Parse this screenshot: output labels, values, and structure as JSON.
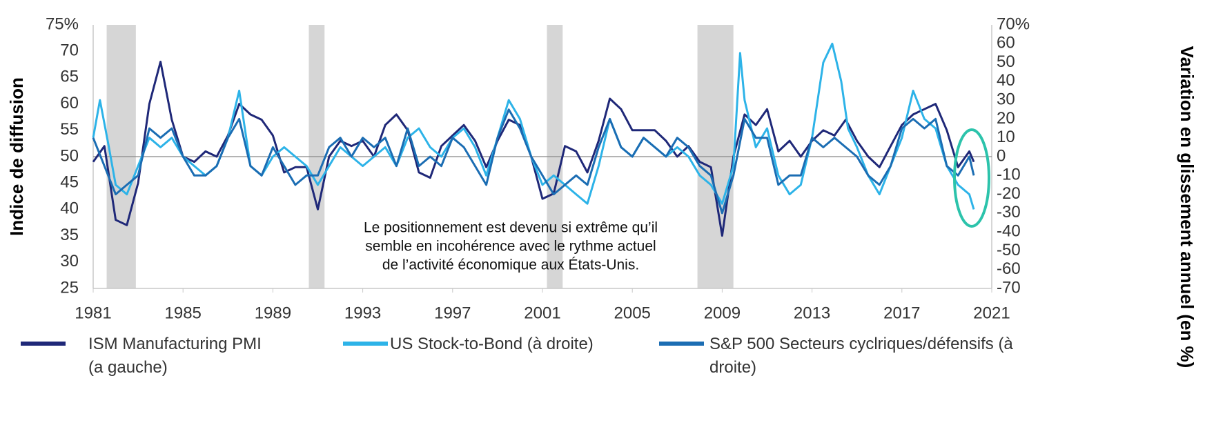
{
  "chart_data": {
    "type": "line",
    "ylabel": "Indice de diffusion",
    "y2label": "Variation en glissement annuel (en %)",
    "annotation": [
      "Le positionnement est devenu si extrême qu’il",
      "semble en incohérence avec le rythme actuel",
      "de l’activité économique aux États-Unis."
    ],
    "xlim": [
      1981,
      2021
    ],
    "xticks": [
      1981,
      1985,
      1989,
      1993,
      1997,
      2001,
      2005,
      2009,
      2013,
      2017,
      2021
    ],
    "ylim": [
      25,
      75
    ],
    "yticks": [
      25,
      30,
      35,
      40,
      45,
      50,
      55,
      60,
      65,
      70,
      {
        "value": 75,
        "label": "75%"
      }
    ],
    "y2lim": [
      -70,
      70
    ],
    "y2ticks": [
      -70,
      -60,
      -50,
      -40,
      -30,
      -20,
      -10,
      0,
      10,
      20,
      30,
      40,
      50,
      60,
      {
        "value": 70,
        "label": "70%"
      }
    ],
    "bands": [
      [
        1981.6,
        1982.9
      ],
      [
        1990.6,
        1991.3
      ],
      [
        2001.2,
        2001.9
      ],
      [
        2007.9,
        2009.5
      ]
    ],
    "series": [
      {
        "name": "ISM Manufacturing PMI (a gauche)",
        "color": "#1f2878",
        "axis": "y",
        "x": [
          1981.0,
          1981.5,
          1982.0,
          1982.5,
          1983.0,
          1983.5,
          1984.0,
          1984.5,
          1985.0,
          1985.5,
          1986.0,
          1986.5,
          1987.0,
          1987.5,
          1988.0,
          1988.5,
          1989.0,
          1989.5,
          1990.0,
          1990.5,
          1991.0,
          1991.5,
          1992.0,
          1992.5,
          1993.0,
          1993.5,
          1994.0,
          1994.5,
          1995.0,
          1995.5,
          1996.0,
          1996.5,
          1997.0,
          1997.5,
          1998.0,
          1998.5,
          1999.0,
          1999.5,
          2000.0,
          2000.5,
          2001.0,
          2001.5,
          2002.0,
          2002.5,
          2003.0,
          2003.5,
          2004.0,
          2004.5,
          2005.0,
          2005.5,
          2006.0,
          2006.5,
          2007.0,
          2007.5,
          2008.0,
          2008.5,
          2009.0,
          2009.5,
          2010.0,
          2010.5,
          2011.0,
          2011.5,
          2012.0,
          2012.5,
          2013.0,
          2013.5,
          2014.0,
          2014.5,
          2015.0,
          2015.5,
          2016.0,
          2016.5,
          2017.0,
          2017.5,
          2018.0,
          2018.5,
          2019.0,
          2019.5,
          2020.0,
          2020.2
        ],
        "values": [
          49,
          52,
          38,
          37,
          45,
          60,
          68,
          57,
          50,
          49,
          51,
          50,
          54,
          60,
          58,
          57,
          54,
          47,
          48,
          48,
          40,
          50,
          53,
          52,
          53,
          50,
          56,
          58,
          55,
          47,
          46,
          52,
          54,
          56,
          53,
          48,
          53,
          57,
          56,
          50,
          42,
          43,
          52,
          51,
          47,
          53,
          61,
          59,
          55,
          55,
          55,
          53,
          50,
          52,
          49,
          48,
          35,
          50,
          58,
          56,
          59,
          51,
          53,
          50,
          53,
          55,
          54,
          57,
          53,
          50,
          48,
          52,
          56,
          58,
          59,
          60,
          55,
          48,
          51,
          49
        ]
      },
      {
        "name": "US Stock-to-Bond (à droite)",
        "color": "#2db3e8",
        "axis": "y2",
        "x": [
          1981.0,
          1981.3,
          1981.7,
          1982.0,
          1982.5,
          1983.0,
          1983.5,
          1984.0,
          1984.5,
          1985.0,
          1985.5,
          1986.0,
          1986.5,
          1987.0,
          1987.5,
          1988.0,
          1988.5,
          1989.0,
          1989.5,
          1990.0,
          1990.5,
          1991.0,
          1991.5,
          1992.0,
          1992.5,
          1993.0,
          1993.5,
          1994.0,
          1994.5,
          1995.0,
          1995.5,
          1996.0,
          1996.5,
          1997.0,
          1997.5,
          1998.0,
          1998.5,
          1999.0,
          1999.5,
          2000.0,
          2000.5,
          2001.0,
          2001.5,
          2002.0,
          2002.5,
          2003.0,
          2003.5,
          2004.0,
          2004.5,
          2005.0,
          2005.5,
          2006.0,
          2006.5,
          2007.0,
          2007.5,
          2008.0,
          2008.5,
          2009.0,
          2009.5,
          2009.8,
          2010.0,
          2010.5,
          2011.0,
          2011.5,
          2012.0,
          2012.5,
          2013.0,
          2013.5,
          2013.9,
          2014.3,
          2014.6,
          2015.0,
          2015.5,
          2016.0,
          2016.5,
          2017.0,
          2017.5,
          2018.0,
          2018.5,
          2019.0,
          2019.5,
          2020.0,
          2020.2
        ],
        "values": [
          10,
          30,
          5,
          -15,
          -20,
          -5,
          10,
          5,
          10,
          0,
          -5,
          -10,
          -5,
          10,
          35,
          -5,
          -10,
          0,
          5,
          0,
          -5,
          -15,
          -5,
          5,
          0,
          -5,
          0,
          5,
          -5,
          10,
          15,
          5,
          0,
          10,
          15,
          5,
          -10,
          10,
          30,
          20,
          0,
          -15,
          -10,
          -15,
          -20,
          -25,
          -5,
          20,
          5,
          0,
          10,
          5,
          0,
          5,
          0,
          -10,
          -15,
          -25,
          -5,
          55,
          30,
          5,
          15,
          -10,
          -20,
          -15,
          10,
          50,
          60,
          40,
          15,
          5,
          -10,
          -20,
          -5,
          10,
          35,
          20,
          15,
          -5,
          -15,
          -20,
          -28
        ]
      },
      {
        "name": "S&P 500 Secteurs cyclriques/défensifs (à droite)",
        "color": "#1b6db3",
        "axis": "y2",
        "x": [
          1981.0,
          1981.5,
          1982.0,
          1982.5,
          1983.0,
          1983.5,
          1984.0,
          1984.5,
          1985.0,
          1985.5,
          1986.0,
          1986.5,
          1987.0,
          1987.5,
          1988.0,
          1988.5,
          1989.0,
          1989.5,
          1990.0,
          1990.5,
          1991.0,
          1991.5,
          1992.0,
          1992.5,
          1993.0,
          1993.5,
          1994.0,
          1994.5,
          1995.0,
          1995.5,
          1996.0,
          1996.5,
          1997.0,
          1997.5,
          1998.0,
          1998.5,
          1999.0,
          1999.5,
          2000.0,
          2000.5,
          2001.0,
          2001.5,
          2002.0,
          2002.5,
          2003.0,
          2003.5,
          2004.0,
          2004.5,
          2005.0,
          2005.5,
          2006.0,
          2006.5,
          2007.0,
          2007.5,
          2008.0,
          2008.5,
          2009.0,
          2009.5,
          2010.0,
          2010.5,
          2011.0,
          2011.5,
          2012.0,
          2012.5,
          2013.0,
          2013.5,
          2014.0,
          2014.5,
          2015.0,
          2015.5,
          2016.0,
          2016.5,
          2017.0,
          2017.5,
          2018.0,
          2018.5,
          2019.0,
          2019.5,
          2020.0,
          2020.2
        ],
        "values": [
          10,
          -5,
          -20,
          -15,
          -10,
          15,
          10,
          15,
          0,
          -10,
          -10,
          -5,
          10,
          20,
          -5,
          -10,
          5,
          -5,
          -15,
          -10,
          -10,
          5,
          10,
          0,
          10,
          5,
          10,
          -5,
          15,
          -5,
          0,
          -5,
          10,
          5,
          -5,
          -15,
          10,
          25,
          15,
          0,
          -10,
          -20,
          -15,
          -10,
          -15,
          5,
          20,
          5,
          0,
          10,
          5,
          0,
          10,
          5,
          -5,
          -10,
          -30,
          -10,
          20,
          10,
          10,
          -15,
          -10,
          -10,
          10,
          5,
          10,
          5,
          0,
          -10,
          -15,
          -5,
          15,
          20,
          15,
          20,
          -5,
          -10,
          0,
          -10
        ]
      }
    ]
  }
}
